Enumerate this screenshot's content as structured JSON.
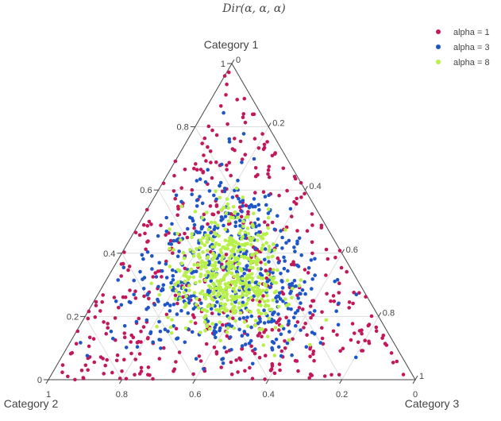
{
  "chart_data": {
    "type": "scatter",
    "subtype": "ternary",
    "title": "Dir(α, α, α)",
    "axes": {
      "a": {
        "label": "Category 1",
        "ticks": [
          "0",
          "0.2",
          "0.4",
          "0.6",
          "0.8",
          "1"
        ]
      },
      "b": {
        "label": "Category 2",
        "ticks": [
          "0",
          "0.2",
          "0.4",
          "0.6",
          "0.8",
          "1"
        ]
      },
      "c": {
        "label": "Category 3",
        "ticks": [
          "0",
          "0.2",
          "0.4",
          "0.6",
          "0.8",
          "1"
        ]
      }
    },
    "grid": true,
    "legend_position": "top-right",
    "series": [
      {
        "name": "alpha = 1",
        "alpha": 1,
        "color": "#c2185b",
        "count": 500
      },
      {
        "name": "alpha = 3",
        "alpha": 3,
        "color": "#1e56c8",
        "count": 500
      },
      {
        "name": "alpha = 8",
        "alpha": 8,
        "color": "#b8f04a",
        "count": 500
      }
    ]
  }
}
